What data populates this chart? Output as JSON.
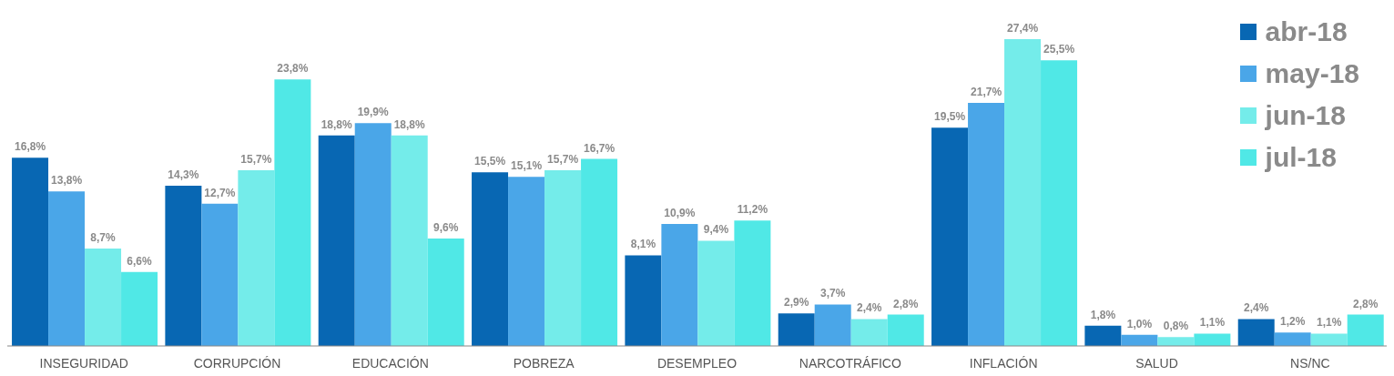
{
  "chart_data": {
    "type": "bar",
    "categories": [
      "INSEGURIDAD",
      "CORRUPCIÓN",
      "EDUCACIÓN",
      "POBREZA",
      "DESEMPLEO",
      "NARCOTRÁFICO",
      "INFLACIÓN",
      "SALUD",
      "NS/NC"
    ],
    "series": [
      {
        "name": "abr-18",
        "color": "#0867b3",
        "values": [
          16.8,
          14.3,
          18.8,
          15.5,
          8.1,
          2.9,
          19.5,
          1.8,
          2.4
        ],
        "value_labels": [
          "16,8%",
          "14,3%",
          "18,8%",
          "15,5%",
          "8,1%",
          "2,9%",
          "19,5%",
          "1,8%",
          "2,4%"
        ]
      },
      {
        "name": "may-18",
        "color": "#4aa6e8",
        "values": [
          13.8,
          12.7,
          19.9,
          15.1,
          10.9,
          3.7,
          21.7,
          1.0,
          1.2
        ],
        "value_labels": [
          "13,8%",
          "12,7%",
          "19,9%",
          "15,1%",
          "10,9%",
          "3,7%",
          "21,7%",
          "1,0%",
          "1,2%"
        ]
      },
      {
        "name": "jun-18",
        "color": "#74ecea",
        "values": [
          8.7,
          15.7,
          18.8,
          15.7,
          9.4,
          2.4,
          27.4,
          0.8,
          1.1
        ],
        "value_labels": [
          "8,7%",
          "15,7%",
          "18,8%",
          "15,7%",
          "9,4%",
          "2,4%",
          "27,4%",
          "0,8%",
          "1,1%"
        ]
      },
      {
        "name": "jul-18",
        "color": "#50e8e6",
        "values": [
          6.6,
          23.8,
          9.6,
          16.7,
          11.2,
          2.8,
          25.5,
          1.1,
          2.8
        ],
        "value_labels": [
          "6,6%",
          "23,8%",
          "9,6%",
          "16,7%",
          "11,2%",
          "2,8%",
          "25,5%",
          "1,1%",
          "2,8%"
        ]
      }
    ],
    "legend": "top right",
    "grid": false
  }
}
